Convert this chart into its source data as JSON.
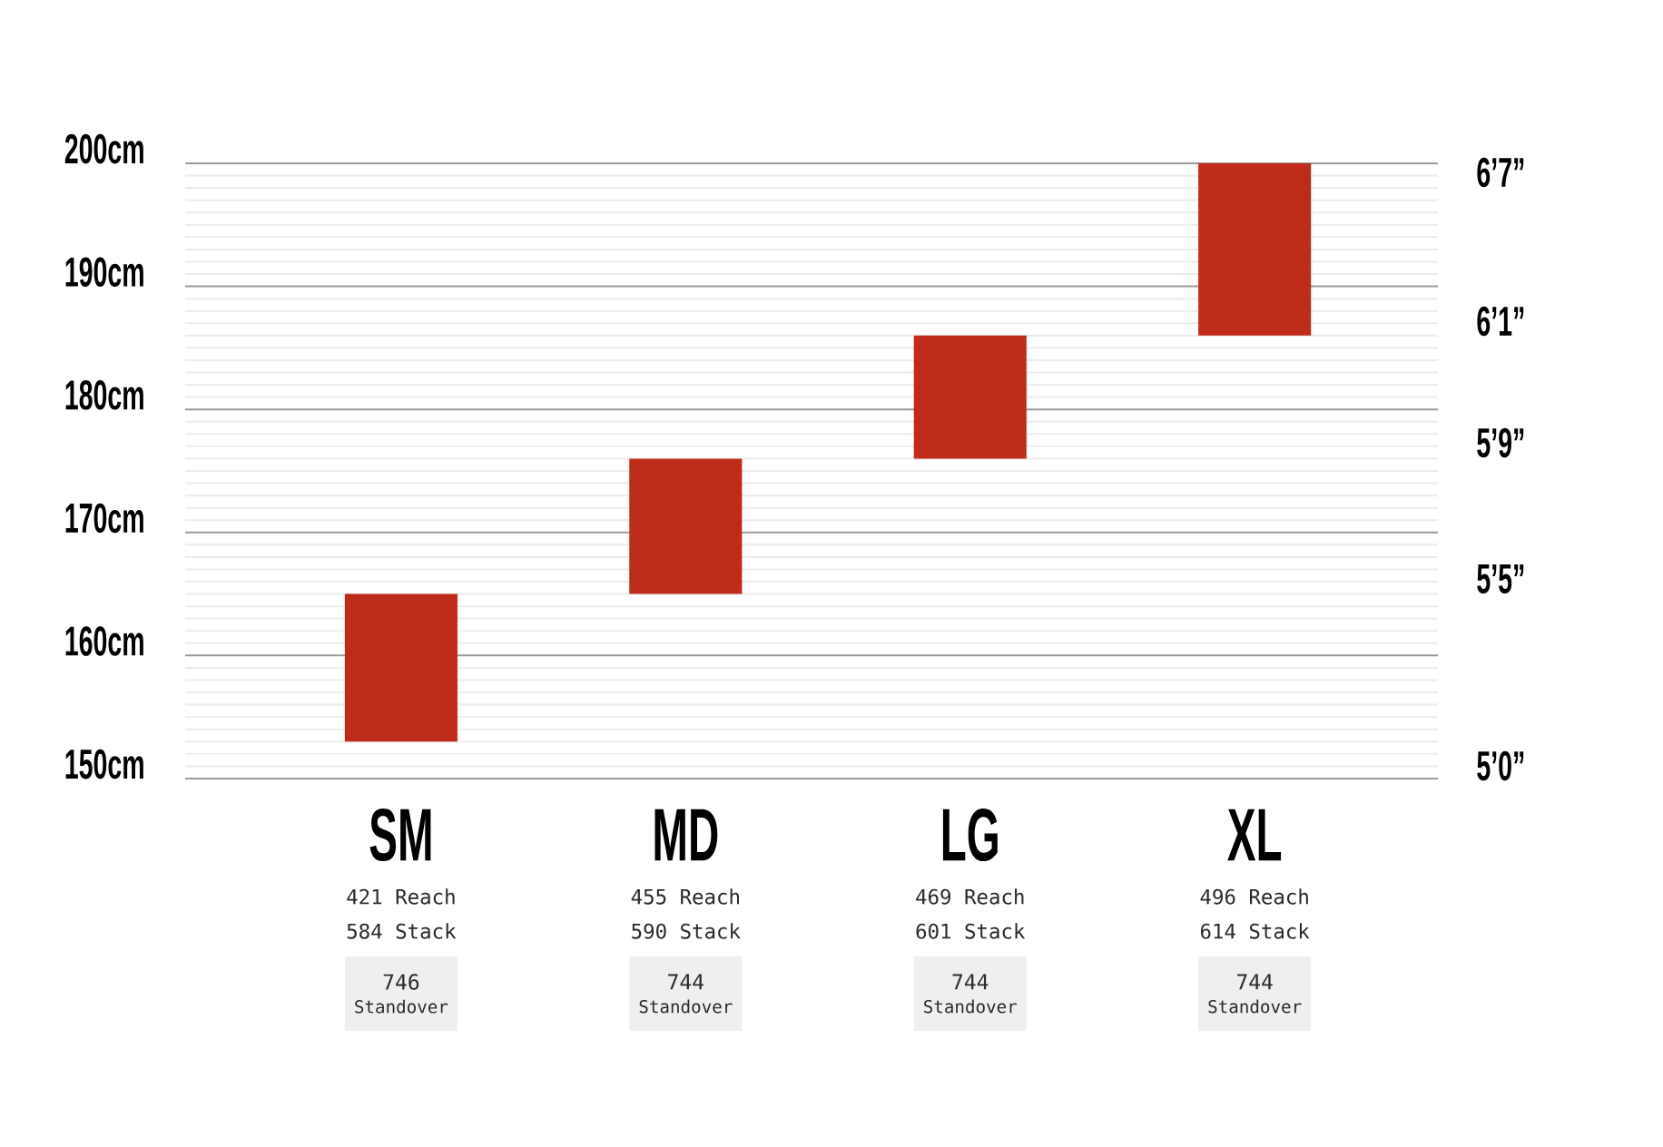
{
  "chart_data": {
    "type": "bar",
    "categories": [
      "SM",
      "MD",
      "LG",
      "XL"
    ],
    "base": [
      153,
      165,
      176,
      186
    ],
    "values": [
      12,
      11,
      10,
      14
    ],
    "color": "#bf2b1a",
    "ylim": [
      150,
      200
    ],
    "yticks": [
      {
        "value": 150,
        "label": "150cm"
      },
      {
        "value": 160,
        "label": "160cm"
      },
      {
        "value": 170,
        "label": "170cm"
      },
      {
        "value": 180,
        "label": "180cm"
      },
      {
        "value": 190,
        "label": "190cm"
      },
      {
        "value": 200,
        "label": "200cm"
      }
    ],
    "grid": "y",
    "annotations": [
      "6’7”",
      "6’1”",
      "5’9”",
      "5’5”",
      "5’0”",
      "421 Reach",
      "584 Stack",
      "746",
      "Standover",
      "455 Reach",
      "590 Stack",
      "744",
      "Standover",
      "469 Reach",
      "601 Stack",
      "744",
      "Standover",
      "496 Reach",
      "614 Stack",
      "744",
      "Standover"
    ]
  }
}
